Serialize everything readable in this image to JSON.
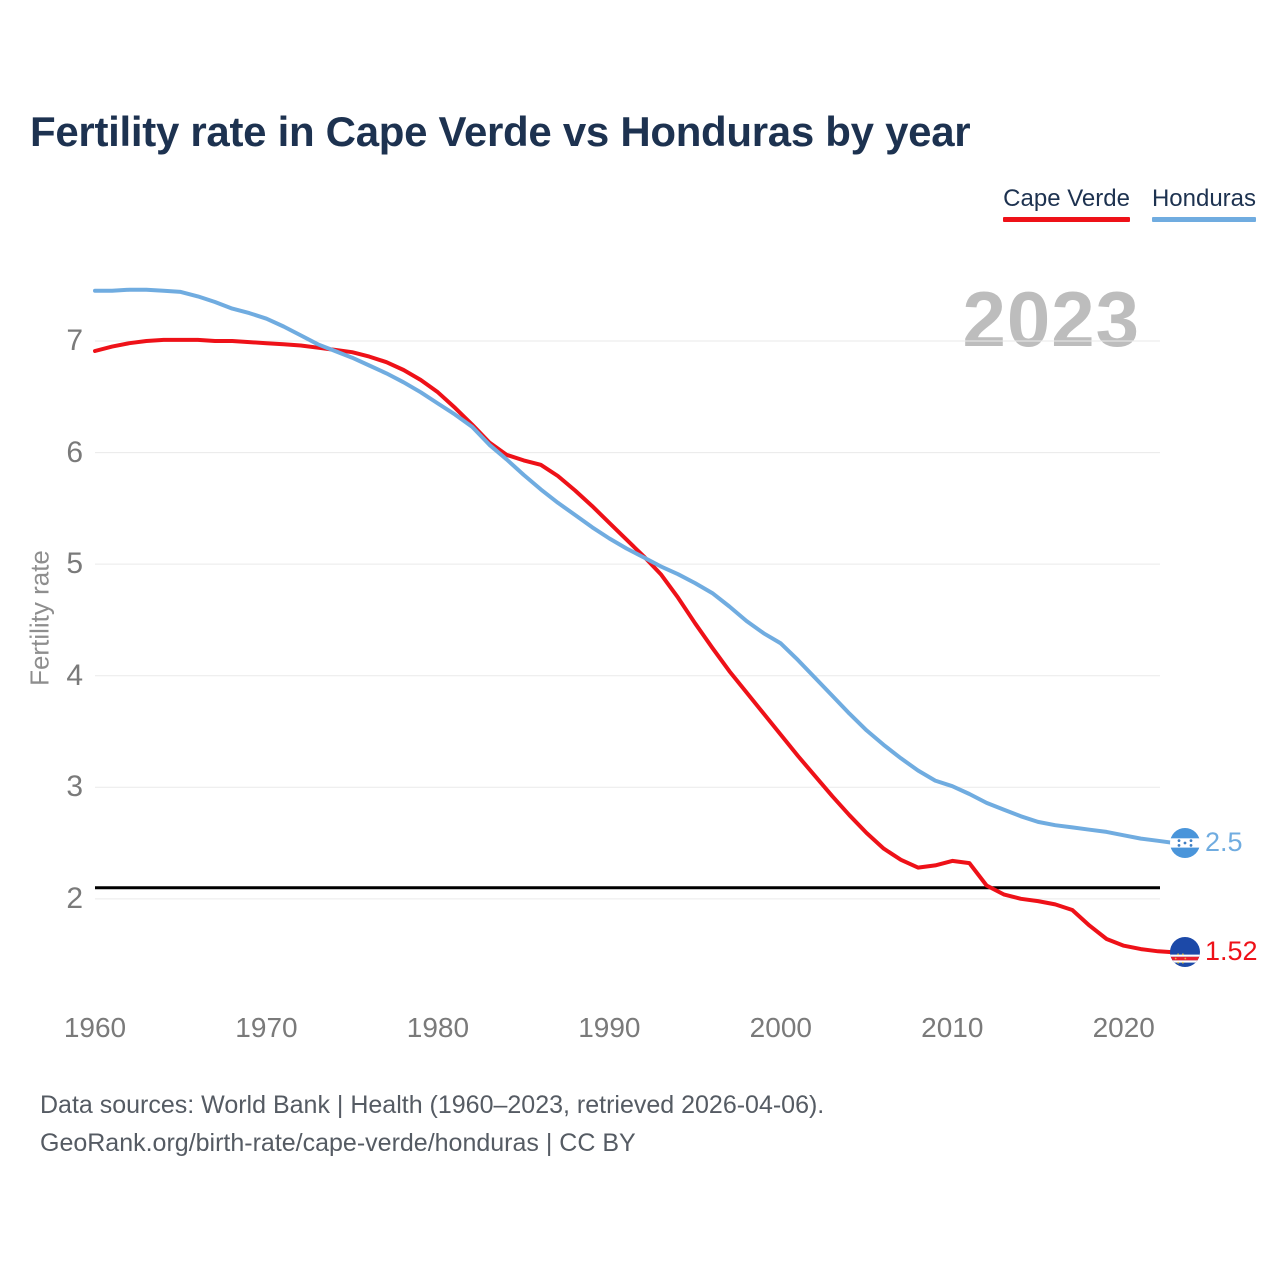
{
  "title": "Fertility rate in Cape Verde vs Honduras by year",
  "watermark": "2023",
  "legend": [
    {
      "label": "Cape Verde",
      "color": "#ee1118"
    },
    {
      "label": "Honduras",
      "color": "#70ace0"
    }
  ],
  "source_line1": "Data sources: World Bank | Health (1960–2023, retrieved 2026-04-06).",
  "source_line2": "GeoRank.org/birth-rate/cape-verde/honduras | CC BY",
  "flags": {
    "honduras": {
      "stripe": "#4a95da",
      "white": "#ffffff",
      "star": "#3f7fc4"
    },
    "cape_verde": {
      "field": "#1c49a8",
      "white": "#ffffff",
      "red": "#e8212e",
      "star": "#e8c33f"
    }
  },
  "chart_data": {
    "type": "line",
    "title": "Fertility rate in Cape Verde vs Honduras by year",
    "xlabel": "",
    "ylabel": "Fertility rate",
    "grid": "horizontal",
    "legend_position": "top-right",
    "x_ticks": [
      1960,
      1970,
      1980,
      1990,
      2000,
      2010,
      2020
    ],
    "y_ticks": [
      2,
      3,
      4,
      5,
      6,
      7
    ],
    "xlim": [
      1960,
      2023
    ],
    "ylim": [
      1.4,
      7.6
    ],
    "reference_line": {
      "value": 2.1,
      "color": "#000000"
    },
    "x": [
      1960,
      1961,
      1962,
      1963,
      1964,
      1965,
      1966,
      1967,
      1968,
      1969,
      1970,
      1971,
      1972,
      1973,
      1974,
      1975,
      1976,
      1977,
      1978,
      1979,
      1980,
      1981,
      1982,
      1983,
      1984,
      1985,
      1986,
      1987,
      1988,
      1989,
      1990,
      1991,
      1992,
      1993,
      1994,
      1995,
      1996,
      1997,
      1998,
      1999,
      2000,
      2001,
      2002,
      2003,
      2004,
      2005,
      2006,
      2007,
      2008,
      2009,
      2010,
      2011,
      2012,
      2013,
      2014,
      2015,
      2016,
      2017,
      2018,
      2019,
      2020,
      2021,
      2022,
      2023
    ],
    "series": [
      {
        "name": "Cape Verde",
        "color": "#ee1118",
        "end_label": "1.52",
        "end_value": 1.52,
        "values": [
          6.91,
          6.95,
          6.98,
          7.0,
          7.01,
          7.01,
          7.01,
          7.0,
          7.0,
          6.99,
          6.98,
          6.97,
          6.96,
          6.94,
          6.92,
          6.9,
          6.86,
          6.81,
          6.74,
          6.65,
          6.54,
          6.4,
          6.25,
          6.09,
          5.98,
          5.93,
          5.89,
          5.79,
          5.66,
          5.52,
          5.37,
          5.22,
          5.07,
          4.91,
          4.7,
          4.47,
          4.25,
          4.04,
          3.85,
          3.66,
          3.47,
          3.28,
          3.1,
          2.92,
          2.75,
          2.59,
          2.45,
          2.35,
          2.28,
          2.3,
          2.34,
          2.32,
          2.12,
          2.04,
          2.0,
          1.98,
          1.95,
          1.9,
          1.76,
          1.64,
          1.58,
          1.55,
          1.53,
          1.52
        ]
      },
      {
        "name": "Honduras",
        "color": "#70ace0",
        "end_label": "2.5",
        "end_value": 2.5,
        "values": [
          7.45,
          7.45,
          7.46,
          7.46,
          7.45,
          7.44,
          7.4,
          7.35,
          7.29,
          7.25,
          7.2,
          7.13,
          7.05,
          6.97,
          6.91,
          6.85,
          6.78,
          6.71,
          6.63,
          6.54,
          6.44,
          6.34,
          6.23,
          6.07,
          5.94,
          5.8,
          5.67,
          5.55,
          5.44,
          5.33,
          5.23,
          5.14,
          5.06,
          4.98,
          4.91,
          4.83,
          4.74,
          4.62,
          4.49,
          4.38,
          4.29,
          4.14,
          3.98,
          3.82,
          3.66,
          3.51,
          3.38,
          3.26,
          3.15,
          3.06,
          3.01,
          2.94,
          2.86,
          2.8,
          2.74,
          2.69,
          2.66,
          2.64,
          2.62,
          2.6,
          2.57,
          2.54,
          2.52,
          2.5
        ]
      }
    ]
  }
}
